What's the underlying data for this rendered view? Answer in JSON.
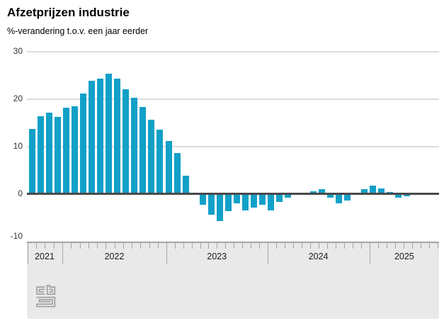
{
  "header": {
    "title": "Afzetprijzen industrie",
    "subtitle": "%-verandering t.o.v. een jaar eerder"
  },
  "colors": {
    "bar": "#11a0c8",
    "zero_line": "#4a4a4a",
    "gridline": "#dcdcdc",
    "axis_band": "#e9e9e9",
    "axis_band_edge": "#a3a3a3",
    "tick": "#a6a6a6",
    "label_text": "#333333"
  },
  "y_axis": {
    "tick_labels": [
      "30",
      "20",
      "10",
      "0",
      "-10"
    ],
    "tick_values": [
      30,
      20,
      10,
      0,
      -10
    ]
  },
  "x_axis": {
    "year_labels": [
      "2021",
      "2022",
      "2023",
      "2024",
      "2025"
    ]
  },
  "footer": {
    "logo_name": "cbs-logo"
  },
  "chart_data": {
    "type": "bar",
    "title": "Afzetprijzen industrie",
    "ylabel": "%-verandering t.o.v. een jaar eerder",
    "unit": "%",
    "ylim": [
      -10,
      30
    ],
    "y_ticks": [
      30,
      20,
      10,
      0,
      -10
    ],
    "grid": true,
    "legend": "none",
    "bar_color": "#11a0c8",
    "x": [
      "2021-09",
      "2021-10",
      "2021-11",
      "2021-12",
      "2022-01",
      "2022-02",
      "2022-03",
      "2022-04",
      "2022-05",
      "2022-06",
      "2022-07",
      "2022-08",
      "2022-09",
      "2022-10",
      "2022-11",
      "2022-12",
      "2023-01",
      "2023-02",
      "2023-03",
      "2023-04",
      "2023-05",
      "2023-06",
      "2023-07",
      "2023-08",
      "2023-09",
      "2023-10",
      "2023-11",
      "2023-12",
      "2024-01",
      "2024-02",
      "2024-03",
      "2024-04",
      "2024-05",
      "2024-06",
      "2024-07",
      "2024-08",
      "2024-09",
      "2024-10",
      "2024-11",
      "2024-12",
      "2025-01",
      "2025-02",
      "2025-03",
      "2025-04",
      "2025-05"
    ],
    "values": [
      13.6,
      16.3,
      17.0,
      16.2,
      18.0,
      18.3,
      21.0,
      23.7,
      24.2,
      25.2,
      24.2,
      21.9,
      20.1,
      18.2,
      15.5,
      13.4,
      11.0,
      8.5,
      3.8,
      0.0,
      -2.2,
      -4.3,
      -5.6,
      -3.6,
      -1.9,
      -3.4,
      -2.9,
      -2.2,
      -3.4,
      -1.6,
      -0.8,
      0.0,
      0.0,
      0.5,
      0.9,
      -0.7,
      -2.0,
      -1.4,
      0.0,
      0.9,
      1.6,
      1.1,
      0.3,
      -0.7,
      -0.5
    ],
    "years": [
      {
        "label": "2021",
        "months_shown": 4
      },
      {
        "label": "2022",
        "months_shown": 12
      },
      {
        "label": "2023",
        "months_shown": 12
      },
      {
        "label": "2024",
        "months_shown": 12
      },
      {
        "label": "2025",
        "months_shown": 5
      }
    ]
  }
}
